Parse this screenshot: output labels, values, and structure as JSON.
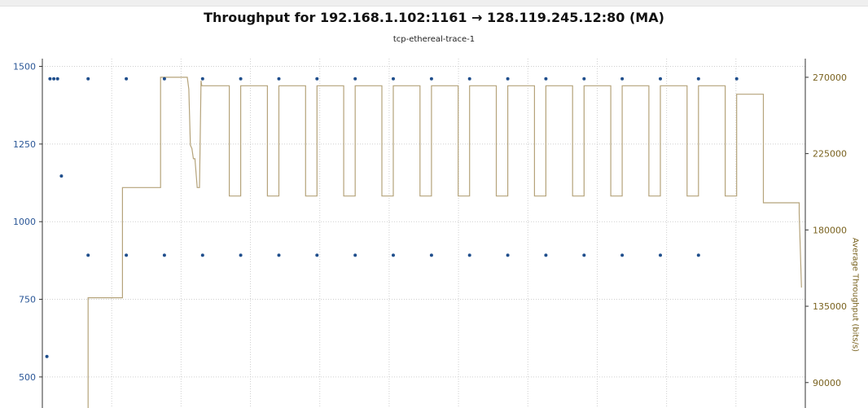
{
  "chart_data": {
    "type": "line",
    "title": "Throughput for 192.168.1.102:1161 → 128.119.245.12:80 (MA)",
    "subtitle": "tcp-ethereal-trace-1",
    "left_axis": {
      "label": "",
      "ticks": [
        500,
        750,
        1000,
        1250,
        1500
      ],
      "range": [
        400,
        1525
      ],
      "color": "#2b5797"
    },
    "right_axis": {
      "label": "Average Throughput (bits/s)",
      "ticks": [
        90000,
        135000,
        180000,
        225000,
        270000
      ],
      "range": [
        75000,
        281000
      ],
      "color": "#7a6320"
    },
    "x_range": [
      0,
      100
    ],
    "grid": true,
    "series": [
      {
        "type": "scatter",
        "axis": "left",
        "color": "#1f4e8c",
        "points": [
          [
            0.6,
            566
          ],
          [
            1.0,
            1460
          ],
          [
            1.5,
            1460
          ],
          [
            2.0,
            1460
          ],
          [
            2.5,
            1147
          ],
          [
            6,
            1460
          ],
          [
            6,
            892
          ],
          [
            11,
            1460
          ],
          [
            11,
            892
          ],
          [
            16,
            1460
          ],
          [
            16,
            892
          ],
          [
            21,
            1460
          ],
          [
            21,
            892
          ],
          [
            26,
            1460
          ],
          [
            26,
            892
          ],
          [
            31,
            1460
          ],
          [
            31,
            892
          ],
          [
            36,
            1460
          ],
          [
            36,
            892
          ],
          [
            41,
            1460
          ],
          [
            41,
            892
          ],
          [
            46,
            1460
          ],
          [
            46,
            892
          ],
          [
            51,
            1460
          ],
          [
            51,
            892
          ],
          [
            56,
            1460
          ],
          [
            56,
            892
          ],
          [
            61,
            1460
          ],
          [
            61,
            892
          ],
          [
            66,
            1460
          ],
          [
            66,
            892
          ],
          [
            71,
            1460
          ],
          [
            71,
            892
          ],
          [
            76,
            1460
          ],
          [
            76,
            892
          ],
          [
            81,
            1460
          ],
          [
            81,
            892
          ],
          [
            86,
            1460
          ],
          [
            86,
            892
          ],
          [
            91,
            1460
          ]
        ]
      },
      {
        "type": "line",
        "axis": "right",
        "color": "#b5a37a",
        "points": [
          [
            6,
            75000
          ],
          [
            6,
            140000
          ],
          [
            10.5,
            140000
          ],
          [
            10.5,
            205000
          ],
          [
            15.5,
            205000
          ],
          [
            15.5,
            270000
          ],
          [
            19,
            270000
          ],
          [
            19.2,
            263000
          ],
          [
            19.4,
            230000
          ],
          [
            19.6,
            228000
          ],
          [
            19.8,
            222000
          ],
          [
            20,
            222000
          ],
          [
            20.3,
            205000
          ],
          [
            20.6,
            205000
          ],
          [
            20.8,
            268000
          ],
          [
            20.9,
            265000
          ],
          [
            21.5,
            265000
          ],
          [
            24.5,
            265000
          ],
          [
            24.5,
            200000
          ],
          [
            26,
            200000
          ],
          [
            26,
            265000
          ],
          [
            29.5,
            265000
          ],
          [
            29.5,
            200000
          ],
          [
            31,
            200000
          ],
          [
            31,
            265000
          ],
          [
            34.5,
            265000
          ],
          [
            34.5,
            200000
          ],
          [
            36,
            200000
          ],
          [
            36,
            265000
          ],
          [
            39.5,
            265000
          ],
          [
            39.5,
            200000
          ],
          [
            41,
            200000
          ],
          [
            41,
            265000
          ],
          [
            44.5,
            265000
          ],
          [
            44.5,
            200000
          ],
          [
            46,
            200000
          ],
          [
            46,
            265000
          ],
          [
            49.5,
            265000
          ],
          [
            49.5,
            200000
          ],
          [
            51,
            200000
          ],
          [
            51,
            265000
          ],
          [
            54.5,
            265000
          ],
          [
            54.5,
            200000
          ],
          [
            56,
            200000
          ],
          [
            56,
            265000
          ],
          [
            59.5,
            265000
          ],
          [
            59.5,
            200000
          ],
          [
            61,
            200000
          ],
          [
            61,
            265000
          ],
          [
            64.5,
            265000
          ],
          [
            64.5,
            200000
          ],
          [
            66,
            200000
          ],
          [
            66,
            265000
          ],
          [
            69.5,
            265000
          ],
          [
            69.5,
            200000
          ],
          [
            71,
            200000
          ],
          [
            71,
            265000
          ],
          [
            74.5,
            265000
          ],
          [
            74.5,
            200000
          ],
          [
            76,
            200000
          ],
          [
            76,
            265000
          ],
          [
            79.5,
            265000
          ],
          [
            79.5,
            200000
          ],
          [
            81,
            200000
          ],
          [
            81,
            265000
          ],
          [
            84.5,
            265000
          ],
          [
            84.5,
            200000
          ],
          [
            86,
            200000
          ],
          [
            86,
            265000
          ],
          [
            89.5,
            265000
          ],
          [
            89.5,
            200000
          ],
          [
            91,
            200000
          ],
          [
            91,
            260000
          ],
          [
            94.5,
            260000
          ],
          [
            94.5,
            196000
          ],
          [
            99.2,
            196000
          ],
          [
            99.2,
            190000
          ],
          [
            99.5,
            146000
          ]
        ]
      }
    ]
  }
}
